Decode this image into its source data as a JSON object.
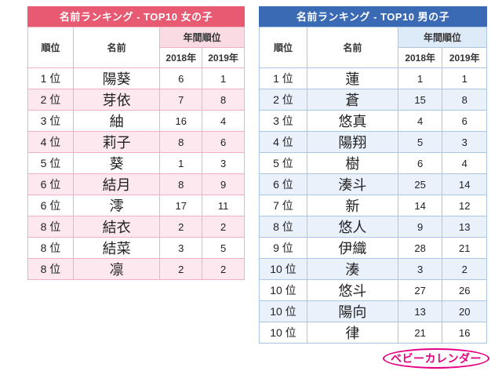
{
  "chart_data": [
    {
      "type": "table",
      "title": "名前ランキング - TOP10 女の子",
      "accent_color": "#e85a72",
      "alt_row_color": "#fce8ee",
      "border_color": "#f0b0bf",
      "columns": {
        "rank": "順位",
        "name": "名前",
        "annual": "年間順位",
        "y2018": "2018年",
        "y2019": "2019年"
      },
      "rows": [
        {
          "rank": "1 位",
          "name": "陽葵",
          "y2018": "6",
          "y2019": "1"
        },
        {
          "rank": "2 位",
          "name": "芽依",
          "y2018": "7",
          "y2019": "8"
        },
        {
          "rank": "3 位",
          "name": "紬",
          "y2018": "16",
          "y2019": "4"
        },
        {
          "rank": "4 位",
          "name": "莉子",
          "y2018": "8",
          "y2019": "6"
        },
        {
          "rank": "5 位",
          "name": "葵",
          "y2018": "1",
          "y2019": "3"
        },
        {
          "rank": "6 位",
          "name": "結月",
          "y2018": "8",
          "y2019": "9"
        },
        {
          "rank": "6 位",
          "name": "澪",
          "y2018": "17",
          "y2019": "11"
        },
        {
          "rank": "8 位",
          "name": "結衣",
          "y2018": "2",
          "y2019": "2"
        },
        {
          "rank": "8 位",
          "name": "結菜",
          "y2018": "3",
          "y2019": "5"
        },
        {
          "rank": "8 位",
          "name": "凛",
          "y2018": "2",
          "y2019": "2"
        }
      ]
    },
    {
      "type": "table",
      "title": "名前ランキング - TOP10 男の子",
      "accent_color": "#3b6ab5",
      "alt_row_color": "#e9f1fb",
      "border_color": "#a9c6e8",
      "columns": {
        "rank": "順位",
        "name": "名前",
        "annual": "年間順位",
        "y2018": "2018年",
        "y2019": "2019年"
      },
      "rows": [
        {
          "rank": "1 位",
          "name": "蓮",
          "y2018": "1",
          "y2019": "1"
        },
        {
          "rank": "2 位",
          "name": "蒼",
          "y2018": "15",
          "y2019": "8"
        },
        {
          "rank": "3 位",
          "name": "悠真",
          "y2018": "4",
          "y2019": "6"
        },
        {
          "rank": "4 位",
          "name": "陽翔",
          "y2018": "5",
          "y2019": "3"
        },
        {
          "rank": "5 位",
          "name": "樹",
          "y2018": "6",
          "y2019": "4"
        },
        {
          "rank": "6 位",
          "name": "湊斗",
          "y2018": "25",
          "y2019": "14"
        },
        {
          "rank": "7 位",
          "name": "新",
          "y2018": "14",
          "y2019": "12"
        },
        {
          "rank": "8 位",
          "name": "悠人",
          "y2018": "9",
          "y2019": "13"
        },
        {
          "rank": "9 位",
          "name": "伊織",
          "y2018": "28",
          "y2019": "21"
        },
        {
          "rank": "10 位",
          "name": "湊",
          "y2018": "3",
          "y2019": "2"
        },
        {
          "rank": "10 位",
          "name": "悠斗",
          "y2018": "27",
          "y2019": "26"
        },
        {
          "rank": "10 位",
          "name": "陽向",
          "y2018": "13",
          "y2019": "20"
        },
        {
          "rank": "10 位",
          "name": "律",
          "y2018": "21",
          "y2019": "16"
        }
      ]
    }
  ],
  "logo": {
    "text": "ベビーカレンダー",
    "color": "#e50081"
  }
}
